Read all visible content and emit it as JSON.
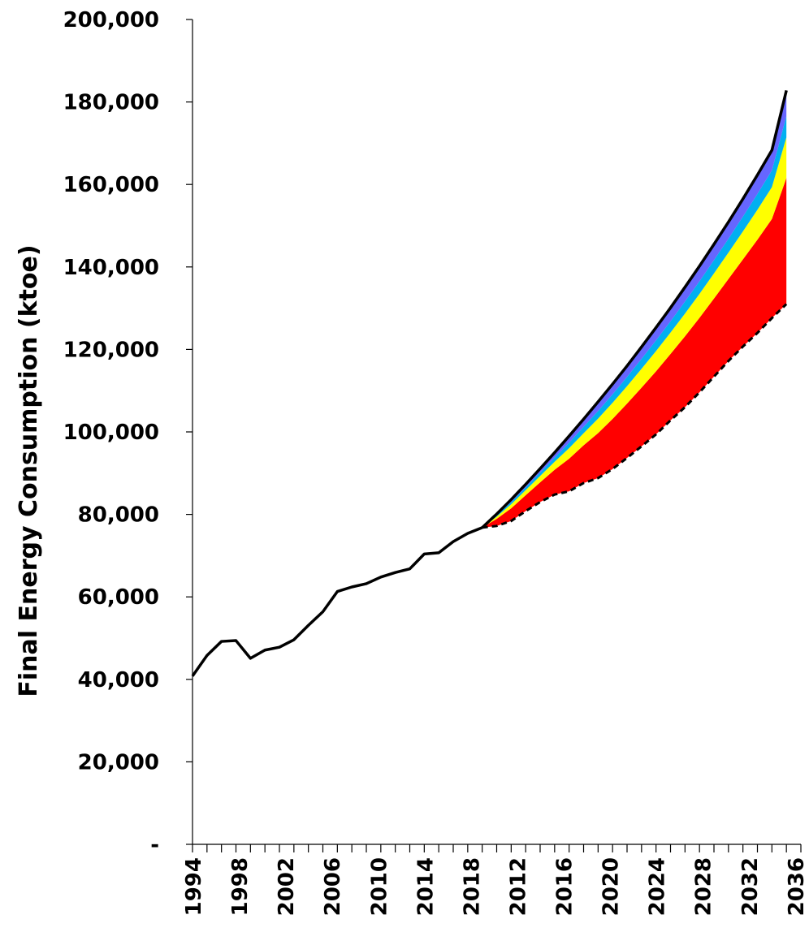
{
  "chart_data": {
    "type": "area",
    "title": "",
    "xlabel": "",
    "ylabel": "Final Energy Consumption (ktoe)",
    "ylim": [
      0,
      200000
    ],
    "grid": false,
    "legend": "none",
    "y_ticks": [
      {
        "value": 0,
        "label": "-"
      },
      {
        "value": 20000,
        "label": "20,000"
      },
      {
        "value": 40000,
        "label": "40,000"
      },
      {
        "value": 60000,
        "label": "60,000"
      },
      {
        "value": 80000,
        "label": "80,000"
      },
      {
        "value": 100000,
        "label": "100,000"
      },
      {
        "value": 120000,
        "label": "120,000"
      },
      {
        "value": 140000,
        "label": "140,000"
      },
      {
        "value": 160000,
        "label": "160,000"
      },
      {
        "value": 180000,
        "label": "180,000"
      },
      {
        "value": 200000,
        "label": "200,000"
      }
    ],
    "x_tick_labels": [
      "1994",
      "1998",
      "2002",
      "2006",
      "2010",
      "2014",
      "2018",
      "2012",
      "2016",
      "2020",
      "2024",
      "2028",
      "2032",
      "2036"
    ],
    "historical": {
      "style": "solid",
      "color": "#000000",
      "values": [
        40800,
        45800,
        49200,
        49400,
        45100,
        47100,
        47800,
        49600,
        53100,
        56400,
        61300,
        62400,
        63200,
        64800,
        65900,
        66800,
        70400,
        70700,
        73400,
        75400,
        76800
      ]
    },
    "projection_baseline": {
      "style": "dashed",
      "color": "#000000",
      "values": [
        76800,
        77200,
        78400,
        80800,
        83000,
        84800,
        85600,
        87600,
        88800,
        91000,
        93700,
        96500,
        99400,
        102800,
        106000,
        109600,
        113400,
        117200,
        120700,
        124000,
        127600,
        131000
      ]
    },
    "projection_total": {
      "style": "solid",
      "color": "#000000",
      "values": [
        76800,
        80100,
        83600,
        87300,
        91100,
        95000,
        99000,
        103100,
        107300,
        111600,
        116000,
        120600,
        125300,
        130100,
        135100,
        140200,
        145500,
        150900,
        156500,
        162300,
        168300,
        182800
      ]
    },
    "bands": [
      {
        "color": "#ff0000",
        "fraction": 0.59
      },
      {
        "color": "#ffff00",
        "fraction": 0.19
      },
      {
        "color": "#00b0f0",
        "fraction": 0.1
      },
      {
        "color": "#6666ff",
        "fraction": 0.12
      }
    ]
  }
}
